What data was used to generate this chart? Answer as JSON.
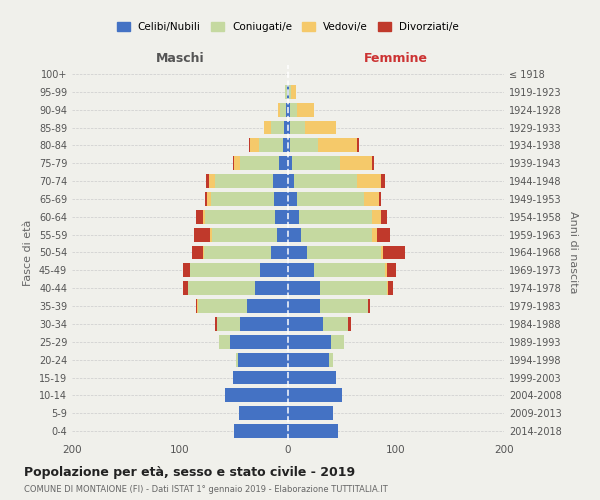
{
  "age_groups": [
    "0-4",
    "5-9",
    "10-14",
    "15-19",
    "20-24",
    "25-29",
    "30-34",
    "35-39",
    "40-44",
    "45-49",
    "50-54",
    "55-59",
    "60-64",
    "65-69",
    "70-74",
    "75-79",
    "80-84",
    "85-89",
    "90-94",
    "95-99",
    "100+"
  ],
  "birth_years": [
    "2014-2018",
    "2009-2013",
    "2004-2008",
    "1999-2003",
    "1994-1998",
    "1989-1993",
    "1984-1988",
    "1979-1983",
    "1974-1978",
    "1969-1973",
    "1964-1968",
    "1959-1963",
    "1954-1958",
    "1949-1953",
    "1944-1948",
    "1939-1943",
    "1934-1938",
    "1929-1933",
    "1924-1928",
    "1919-1923",
    "≤ 1918"
  ],
  "maschi": {
    "celibi": [
      50,
      45,
      58,
      51,
      46,
      54,
      44,
      38,
      31,
      26,
      16,
      10,
      12,
      13,
      14,
      8,
      5,
      4,
      2,
      1,
      0
    ],
    "coniugati": [
      0,
      0,
      0,
      0,
      2,
      10,
      22,
      45,
      62,
      65,
      62,
      60,
      65,
      58,
      54,
      36,
      22,
      12,
      5,
      2,
      0
    ],
    "vedovi": [
      0,
      0,
      0,
      0,
      0,
      0,
      0,
      1,
      0,
      0,
      1,
      2,
      2,
      4,
      5,
      6,
      8,
      6,
      2,
      0,
      0
    ],
    "divorziati": [
      0,
      0,
      0,
      0,
      0,
      0,
      2,
      1,
      4,
      6,
      10,
      15,
      6,
      2,
      3,
      1,
      1,
      0,
      0,
      0,
      0
    ]
  },
  "femmine": {
    "nubili": [
      46,
      42,
      50,
      44,
      38,
      40,
      32,
      30,
      30,
      24,
      18,
      12,
      10,
      8,
      6,
      4,
      2,
      2,
      2,
      1,
      0
    ],
    "coniugate": [
      0,
      0,
      0,
      0,
      4,
      12,
      24,
      44,
      62,
      66,
      68,
      66,
      68,
      62,
      58,
      44,
      26,
      14,
      6,
      2,
      0
    ],
    "vedove": [
      0,
      0,
      0,
      0,
      0,
      0,
      0,
      0,
      1,
      2,
      2,
      4,
      8,
      14,
      22,
      30,
      36,
      28,
      16,
      4,
      0
    ],
    "divorziate": [
      0,
      0,
      0,
      0,
      0,
      0,
      2,
      2,
      4,
      8,
      20,
      12,
      6,
      2,
      4,
      2,
      2,
      0,
      0,
      0,
      0
    ]
  },
  "color_celibi": "#4472C4",
  "color_coniugati": "#c5d9a0",
  "color_vedovi": "#f5c96a",
  "color_divorziati": "#c0392b",
  "title": "Popolazione per età, sesso e stato civile - 2019",
  "subtitle": "COMUNE DI MONTAIONE (FI) - Dati ISTAT 1° gennaio 2019 - Elaborazione TUTTITALIA.IT",
  "xlabel_left": "Maschi",
  "xlabel_right": "Femmine",
  "ylabel_left": "Fasce di età",
  "ylabel_right": "Anni di nascita",
  "xlim": 200,
  "background_color": "#f0f0eb",
  "legend_labels": [
    "Celibi/Nubili",
    "Coniugati/e",
    "Vedovi/e",
    "Divorziati/e"
  ]
}
